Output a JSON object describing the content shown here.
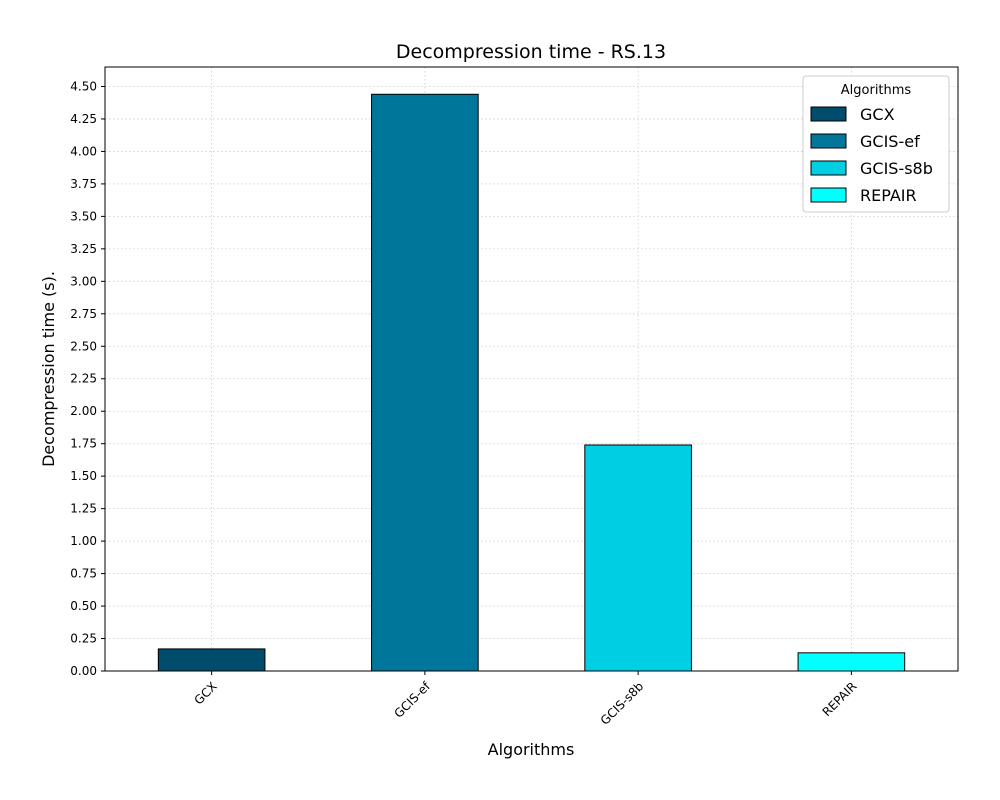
{
  "chart_data": {
    "type": "bar",
    "title": "Decompression time -  RS.13",
    "xlabel": "Algorithms",
    "ylabel": "Decompression time (s).",
    "categories": [
      "GCX",
      "GCIS-ef",
      "GCIS-s8b",
      "REPAIR"
    ],
    "values": [
      0.17,
      4.44,
      1.74,
      0.14
    ],
    "colors": [
      "#004c6d",
      "#00769b",
      "#00cfe3",
      "#00ffff"
    ],
    "ylim": [
      0,
      4.65
    ],
    "yticks": [
      "0.00",
      "0.25",
      "0.50",
      "0.75",
      "1.00",
      "1.25",
      "1.50",
      "1.75",
      "2.00",
      "2.25",
      "2.50",
      "2.75",
      "3.00",
      "3.25",
      "3.50",
      "3.75",
      "4.00",
      "4.25",
      "4.50"
    ],
    "grid": true,
    "legend": {
      "title": "Algorithms",
      "placement": "top-right",
      "entries": [
        "GCX",
        "GCIS-ef",
        "GCIS-s8b",
        "REPAIR"
      ]
    }
  }
}
